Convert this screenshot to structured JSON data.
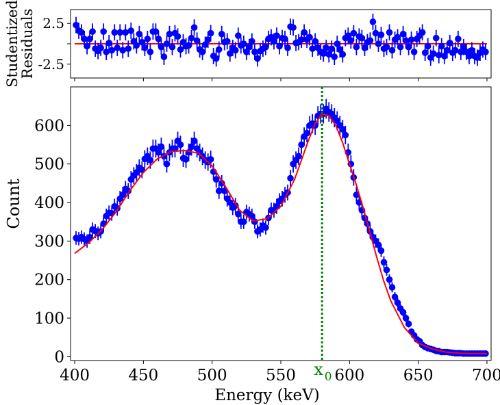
{
  "chart_data": [
    {
      "type": "scatter",
      "panel": "residuals",
      "ylabel_line1": "Studentized",
      "ylabel_line2": "Residuals",
      "xlim": [
        397,
        703
      ],
      "ylim": [
        -4.2,
        4.2
      ],
      "yticks": [
        -2.5,
        0,
        2.5
      ],
      "ytick_labels": [
        "-2.5",
        "",
        "2.5"
      ],
      "xticks": [
        400,
        450,
        500,
        550,
        600,
        650,
        700
      ],
      "zero_line": 0,
      "error": 1,
      "x": [
        401,
        403,
        405,
        407,
        409,
        411,
        413,
        415,
        417,
        419,
        421,
        423,
        425,
        427,
        429,
        431,
        433,
        435,
        437,
        439,
        441,
        443,
        445,
        447,
        449,
        451,
        453,
        455,
        457,
        459,
        461,
        463,
        465,
        467,
        469,
        471,
        473,
        475,
        477,
        479,
        481,
        483,
        485,
        487,
        489,
        491,
        493,
        495,
        497,
        499,
        501,
        503,
        505,
        507,
        509,
        511,
        513,
        515,
        517,
        519,
        521,
        523,
        525,
        527,
        529,
        531,
        533,
        535,
        537,
        539,
        541,
        543,
        545,
        547,
        549,
        551,
        553,
        555,
        557,
        559,
        561,
        563,
        565,
        567,
        569,
        571,
        573,
        575,
        577,
        579,
        581,
        583,
        585,
        587,
        589,
        591,
        593,
        595,
        597,
        599,
        601,
        603,
        605,
        607,
        609,
        611,
        613,
        615,
        617,
        619,
        621,
        623,
        625,
        627,
        629,
        631,
        633,
        635,
        637,
        639,
        641,
        643,
        645,
        647,
        649,
        651,
        653,
        655,
        657,
        659,
        661,
        663,
        665,
        667,
        669,
        671,
        673,
        675,
        677,
        679,
        681,
        683,
        685,
        687,
        689,
        691,
        693,
        695,
        697,
        699
      ],
      "y": [
        2.3,
        1.6,
        1.4,
        0.6,
        -0.3,
        0.6,
        1.5,
        -0.6,
        -0.9,
        -0.5,
        1.5,
        -1.0,
        0.1,
        -0.8,
        1.4,
        -0.5,
        1.4,
        -0.8,
        1.4,
        -0.6,
        1.6,
        0.3,
        -0.2,
        1.2,
        0.2,
        -0.5,
        0.6,
        -1.0,
        1.5,
        1.5,
        0.6,
        -0.4,
        -1.6,
        0.0,
        1.2,
        -0.4,
        1.3,
        0.9,
        -0.7,
        0.2,
        -0.3,
        -0.2,
        0.7,
        2.0,
        0.4,
        -0.7,
        -1.0,
        -0.1,
        0.5,
        1.3,
        -1.5,
        -1.8,
        -0.7,
        1.2,
        0.2,
        0.3,
        -1.2,
        -0.5,
        -0.8,
        1.0,
        -0.2,
        0.0,
        -1.0,
        -0.4,
        0.3,
        -1.0,
        -1.8,
        -0.9,
        -0.6,
        -0.4,
        0.6,
        0.8,
        0.3,
        1.0,
        -0.3,
        0.7,
        0.6,
        -0.5,
        2.1,
        2.0,
        0.1,
        0.2,
        0.5,
        1.4,
        0.5,
        0.8,
        -0.6,
        0.3,
        -0.5,
        -1.0,
        -1.2,
        -0.5,
        -1.3,
        -0.6,
        -1.6,
        0.0,
        -0.7,
        -1.3,
        0.7,
        1.0,
        0.4,
        1.3,
        -0.4,
        0.9,
        0.7,
        -0.5,
        0.2,
        0.4,
        2.7,
        1.3,
        0.0,
        1.1,
        -0.6,
        -0.4,
        1.4,
        -0.8,
        0.5,
        0.8,
        -0.4,
        1.2,
        0.4,
        -0.4,
        0.5,
        -1.0,
        0.6,
        1.0,
        1.4,
        -1.1,
        -0.3,
        -1.7,
        -1.2,
        0.7,
        -1.4,
        -0.3,
        -1.5,
        -0.8,
        0.1,
        -1.1,
        -0.8,
        0.6,
        -1.0,
        -0.4,
        -1.0,
        -1.5,
        -0.8,
        -1.5,
        -1.7,
        -1.1,
        -0.7,
        -1.0
      ]
    },
    {
      "type": "scatter",
      "panel": "main",
      "xlabel": "Energy (keV)",
      "ylabel": "Count",
      "xlim": [
        397,
        703
      ],
      "ylim": [
        -10,
        700
      ],
      "xticks": [
        400,
        450,
        500,
        550,
        600,
        650,
        700
      ],
      "yticks": [
        0,
        100,
        200,
        300,
        400,
        500,
        600
      ],
      "marker_label_main": "x",
      "marker_label_sub": "0",
      "marker_x": 580,
      "series": [
        {
          "kind": "data-with-errorbars",
          "x": [
            401,
            403,
            405,
            407,
            409,
            411,
            413,
            415,
            417,
            419,
            421,
            423,
            425,
            427,
            429,
            431,
            433,
            435,
            437,
            439,
            441,
            443,
            445,
            447,
            449,
            451,
            453,
            455,
            457,
            459,
            461,
            463,
            465,
            467,
            469,
            471,
            473,
            475,
            477,
            479,
            481,
            483,
            485,
            487,
            489,
            491,
            493,
            495,
            497,
            499,
            501,
            503,
            505,
            507,
            509,
            511,
            513,
            515,
            517,
            519,
            521,
            523,
            525,
            527,
            529,
            531,
            533,
            535,
            537,
            539,
            541,
            543,
            545,
            547,
            549,
            551,
            553,
            555,
            557,
            559,
            561,
            563,
            565,
            567,
            569,
            571,
            573,
            575,
            577,
            579,
            581,
            583,
            585,
            587,
            589,
            591,
            593,
            595,
            597,
            599,
            601,
            603,
            605,
            607,
            609,
            611,
            613,
            615,
            617,
            619,
            621,
            623,
            625,
            627,
            629,
            631,
            633,
            635,
            637,
            639,
            641,
            643,
            645,
            647,
            649,
            651,
            653,
            655,
            657,
            659,
            661,
            663,
            665,
            667,
            669,
            671,
            673,
            675,
            677,
            679,
            681,
            683,
            685,
            687,
            689,
            691,
            693,
            695,
            697,
            699
          ],
          "y": [
            308,
            306,
            310,
            305,
            300,
            310,
            330,
            326,
            320,
            325,
            345,
            365,
            373,
            372,
            390,
            385,
            410,
            420,
            435,
            430,
            460,
            470,
            478,
            490,
            485,
            513,
            520,
            510,
            540,
            540,
            530,
            545,
            520,
            500,
            530,
            540,
            540,
            560,
            550,
            515,
            512,
            530,
            545,
            560,
            540,
            530,
            520,
            510,
            505,
            512,
            480,
            460,
            430,
            450,
            430,
            410,
            400,
            387,
            392,
            370,
            350,
            350,
            375,
            370,
            365,
            350,
            325,
            330,
            340,
            335,
            360,
            380,
            380,
            390,
            404,
            410,
            420,
            426,
            463,
            500,
            510,
            520,
            550,
            571,
            580,
            600,
            605,
            600,
            625,
            630,
            630,
            643,
            635,
            630,
            620,
            612,
            600,
            590,
            575,
            530,
            500,
            465,
            420,
            400,
            380,
            360,
            345,
            325,
            310,
            300,
            290,
            275,
            245,
            225,
            200,
            180,
            155,
            140,
            125,
            115,
            100,
            85,
            65,
            55,
            45,
            40,
            30,
            25,
            22,
            20,
            18,
            15,
            14,
            12,
            12,
            12,
            11,
            10,
            9,
            9,
            9,
            8,
            8,
            8,
            8,
            8,
            8,
            8,
            8,
            8
          ]
        },
        {
          "kind": "fit-curve",
          "x": [
            400,
            410,
            420,
            430,
            440,
            450,
            460,
            470,
            480,
            490,
            500,
            510,
            520,
            530,
            540,
            550,
            560,
            570,
            575,
            580,
            585,
            590,
            595,
            600,
            605,
            610,
            615,
            620,
            625,
            630,
            640,
            650,
            660,
            670,
            680,
            690,
            700
          ],
          "y": [
            268,
            295,
            330,
            375,
            430,
            478,
            513,
            532,
            535,
            528,
            495,
            440,
            380,
            352,
            358,
            390,
            460,
            560,
            605,
            630,
            625,
            600,
            555,
            500,
            445,
            385,
            320,
            255,
            195,
            145,
            75,
            35,
            20,
            12,
            9,
            8,
            8
          ]
        }
      ]
    }
  ],
  "colors": {
    "data": "#0000ff",
    "fit": "#ff0000",
    "marker": "#008000"
  }
}
